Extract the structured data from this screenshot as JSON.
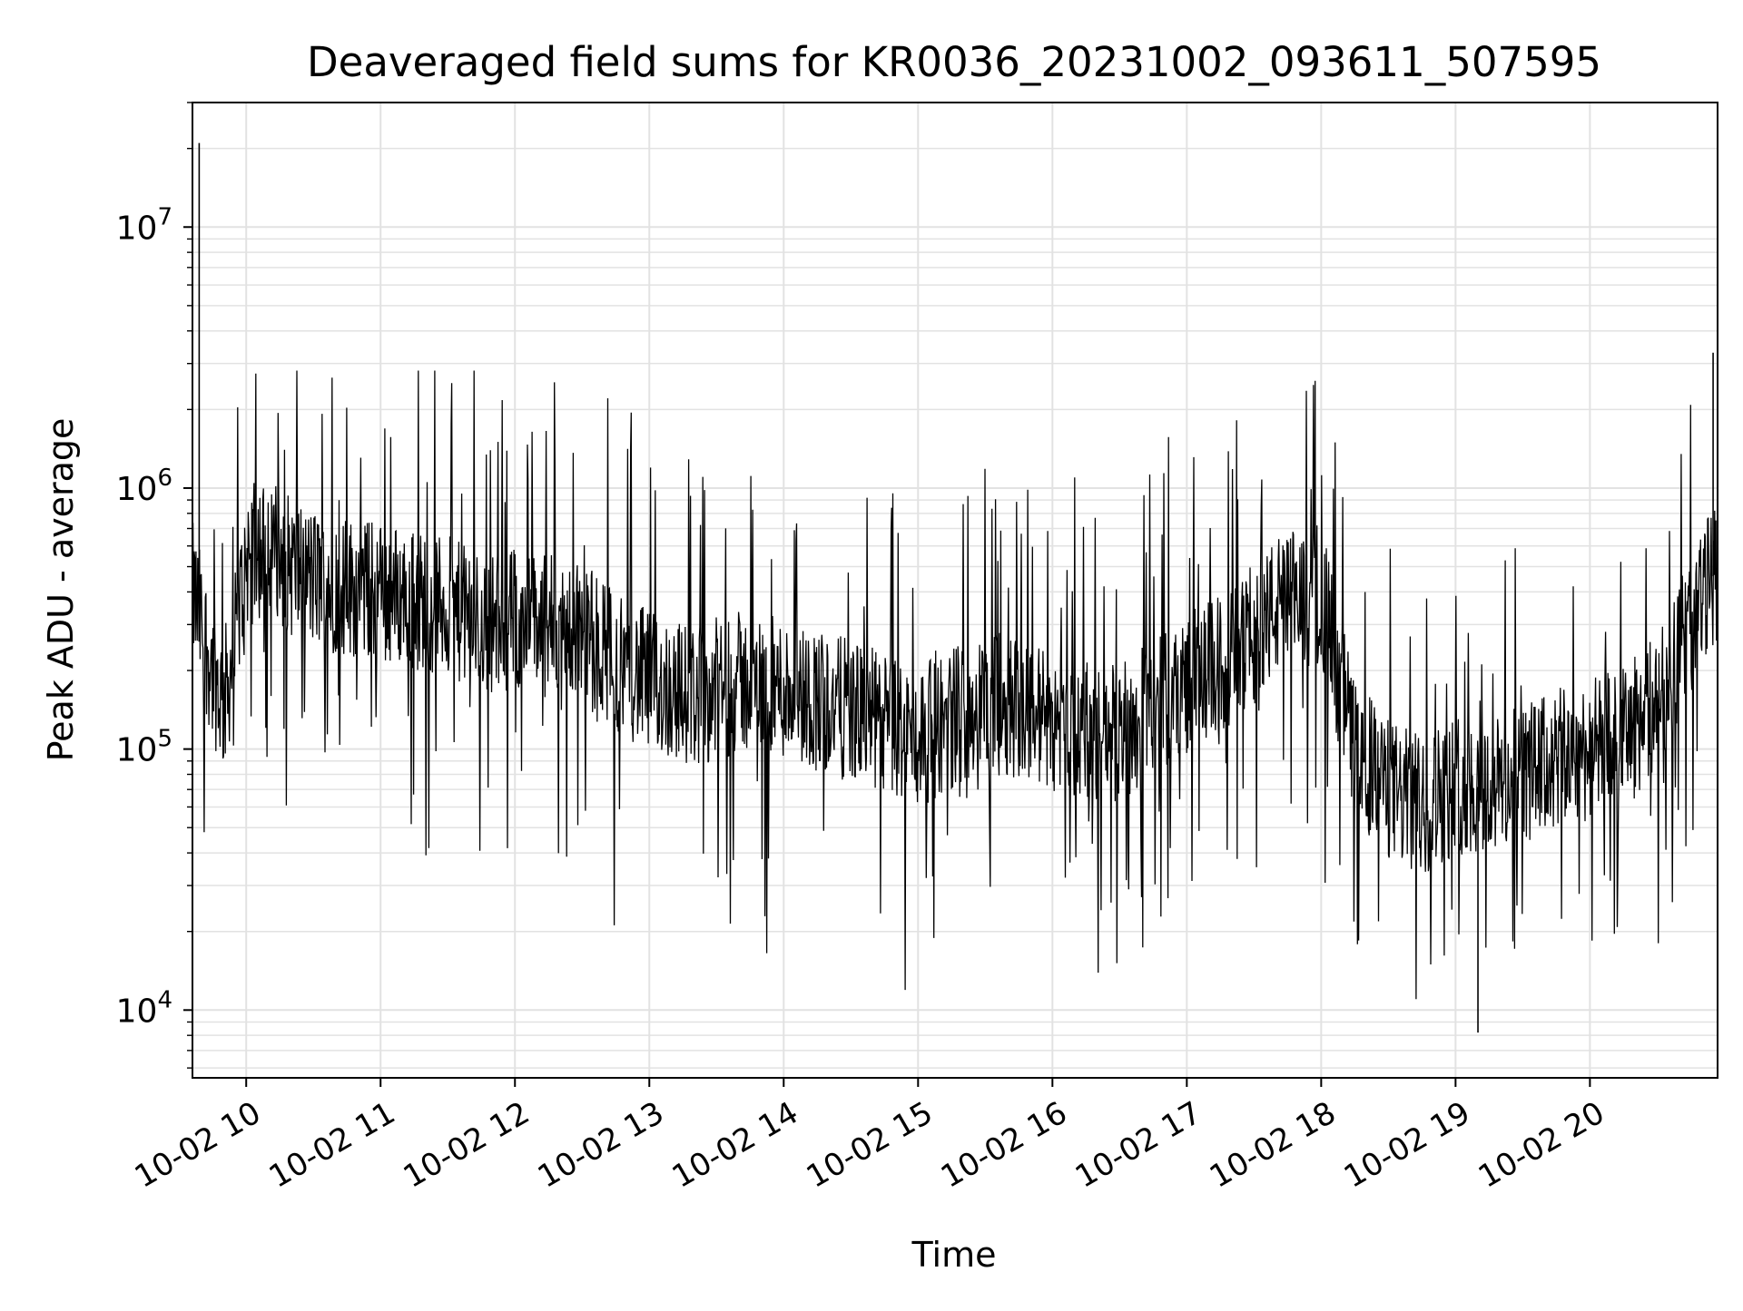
{
  "chart_data": {
    "type": "line",
    "title": "Deaveraged field sums for KR0036_20231002_093611_507595",
    "xlabel": "Time",
    "ylabel": "Peak ADU - average",
    "yscale": "log",
    "xlim": [
      "2023-10-02 09:36",
      "2023-10-02 20:57"
    ],
    "ylim": [
      5500,
      30000000
    ],
    "x_ticks": [
      "10-02 10",
      "10-02 11",
      "10-02 12",
      "10-02 13",
      "10-02 14",
      "10-02 15",
      "10-02 16",
      "10-02 17",
      "10-02 18",
      "10-02 19",
      "10-02 20"
    ],
    "y_ticks": [
      {
        "base": "10",
        "exp": "4",
        "value": 10000
      },
      {
        "base": "10",
        "exp": "5",
        "value": 100000
      },
      {
        "base": "10",
        "exp": "6",
        "value": 1000000
      },
      {
        "base": "10",
        "exp": "7",
        "value": 10000000
      }
    ],
    "grid": true,
    "line_color": "#000000",
    "series": [
      {
        "x": [
          "2023-10-02 09:36",
          "2023-10-02 09:40",
          "2023-10-02 09:45",
          "2023-10-02 09:50",
          "2023-10-02 09:55",
          "2023-10-02 10:00",
          "2023-10-02 10:10",
          "2023-10-02 10:20",
          "2023-10-02 10:30",
          "2023-10-02 10:45",
          "2023-10-02 11:00",
          "2023-10-02 11:15",
          "2023-10-02 11:30",
          "2023-10-02 11:45",
          "2023-10-02 12:00",
          "2023-10-02 12:15",
          "2023-10-02 12:30",
          "2023-10-02 12:45",
          "2023-10-02 13:00",
          "2023-10-02 13:20",
          "2023-10-02 13:40",
          "2023-10-02 14:00",
          "2023-10-02 14:20",
          "2023-10-02 14:40",
          "2023-10-02 15:00",
          "2023-10-02 15:20",
          "2023-10-02 15:40",
          "2023-10-02 16:00",
          "2023-10-02 16:20",
          "2023-10-02 16:40",
          "2023-10-02 17:00",
          "2023-10-02 17:20",
          "2023-10-02 17:40",
          "2023-10-02 18:00",
          "2023-10-02 18:15",
          "2023-10-02 18:30",
          "2023-10-02 18:45",
          "2023-10-02 19:00",
          "2023-10-02 19:15",
          "2023-10-02 19:30",
          "2023-10-02 19:45",
          "2023-10-02 20:00",
          "2023-10-02 20:15",
          "2023-10-02 20:30",
          "2023-10-02 20:45",
          "2023-10-02 20:57"
        ],
        "y": [
          400000,
          300000,
          200000,
          150000,
          250000,
          550000,
          600000,
          500000,
          450000,
          420000,
          400000,
          380000,
          350000,
          300000,
          320000,
          300000,
          280000,
          220000,
          180000,
          160000,
          180000,
          170000,
          150000,
          130000,
          110000,
          140000,
          150000,
          130000,
          110000,
          130000,
          180000,
          220000,
          350000,
          400000,
          100000,
          70000,
          60000,
          75000,
          70000,
          80000,
          90000,
          100000,
          110000,
          150000,
          300000,
          500000
        ]
      }
    ],
    "annotations": [
      {
        "x": "2023-10-02 09:39",
        "y": 21000000,
        "text": ""
      },
      {
        "x": "2023-10-02 20:55",
        "y": 3300000,
        "text": ""
      },
      {
        "x": "2023-10-02 19:10",
        "y": 8200,
        "text": ""
      }
    ]
  }
}
